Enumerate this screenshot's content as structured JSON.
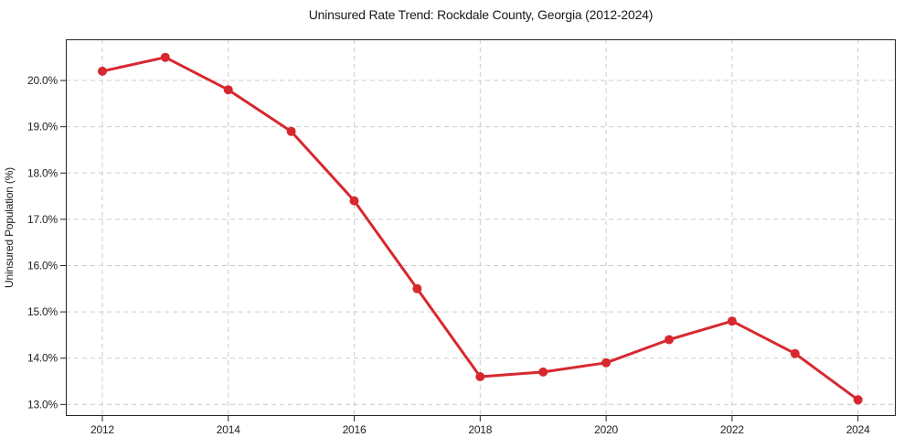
{
  "chart_data": {
    "type": "line",
    "title": "Uninsured Rate Trend: Rockdale County, Georgia (2012-2024)",
    "xlabel": "",
    "ylabel": "Uninsured Population (%)",
    "x": [
      2012,
      2013,
      2014,
      2015,
      2016,
      2017,
      2018,
      2019,
      2020,
      2021,
      2022,
      2023,
      2024
    ],
    "series": [
      {
        "name": "Uninsured Population (%)",
        "values": [
          20.2,
          20.5,
          19.8,
          18.9,
          17.4,
          15.5,
          13.6,
          13.7,
          13.9,
          14.4,
          14.8,
          14.1,
          13.1
        ]
      }
    ],
    "xlim": [
      2011.42,
      2024.6
    ],
    "ylim": [
      12.75,
      20.89
    ],
    "xticks": [
      2012,
      2014,
      2016,
      2018,
      2020,
      2022,
      2024
    ],
    "xtick_labels": [
      "2012",
      "2014",
      "2016",
      "2018",
      "2020",
      "2022",
      "2024"
    ],
    "yticks": [
      13,
      14,
      15,
      16,
      17,
      18,
      19,
      20
    ],
    "ytick_labels": [
      "13.0%",
      "14.0%",
      "15.0%",
      "16.0%",
      "17.0%",
      "18.0%",
      "19.0%",
      "20.0%"
    ],
    "grid": true,
    "grid_style": "dashed",
    "legend": false,
    "marker": "circle",
    "colors": {
      "line": "#d7282f",
      "marker": "#d7282f",
      "grid": "#cccccc",
      "axis": "#262626",
      "title_text": "#1a1a1a",
      "tick_text": "#222222",
      "background": "#ffffff"
    }
  }
}
